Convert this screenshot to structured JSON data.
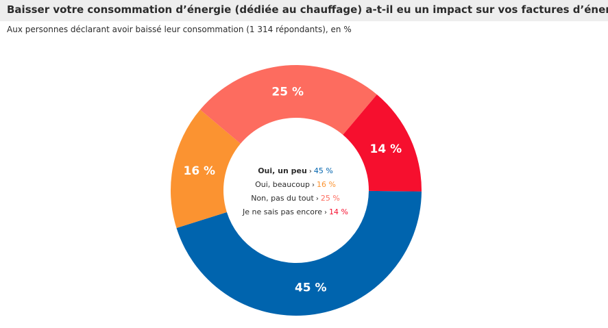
{
  "header": {
    "title": "Baisser votre consommation d’énergie (dédiée au chauffage) a-t-il eu un impact sur vos factures d’énergie ?",
    "subtitle": "Aux personnes déclarant avoir baissé leur consommation (1 314  répondants), en %"
  },
  "colors": {
    "title_bar": "#eeeeee",
    "series": [
      "#0064ae",
      "#fb9331",
      "#fd6c5f",
      "#f60f2e"
    ]
  },
  "legend_arrow": "›",
  "chart_data": {
    "type": "donut",
    "title": "Baisser votre consommation d’énergie (dédiée au chauffage) a-t-il eu un impact sur vos factures d’énergie ?",
    "subtitle": "Aux personnes déclarant avoir baissé leur consommation (1 314  répondants), en %",
    "categories": [
      "Oui, un peu",
      "Oui, beaucoup",
      "Non, pas du tout",
      "Je ne sais pas encore"
    ],
    "values": [
      45,
      16,
      25,
      14
    ],
    "value_labels": [
      "45 %",
      "16 %",
      "25 %",
      "14 %"
    ],
    "colors": [
      "#0064ae",
      "#fb9331",
      "#fd6c5f",
      "#f60f2e"
    ],
    "legend_placement": "center"
  }
}
